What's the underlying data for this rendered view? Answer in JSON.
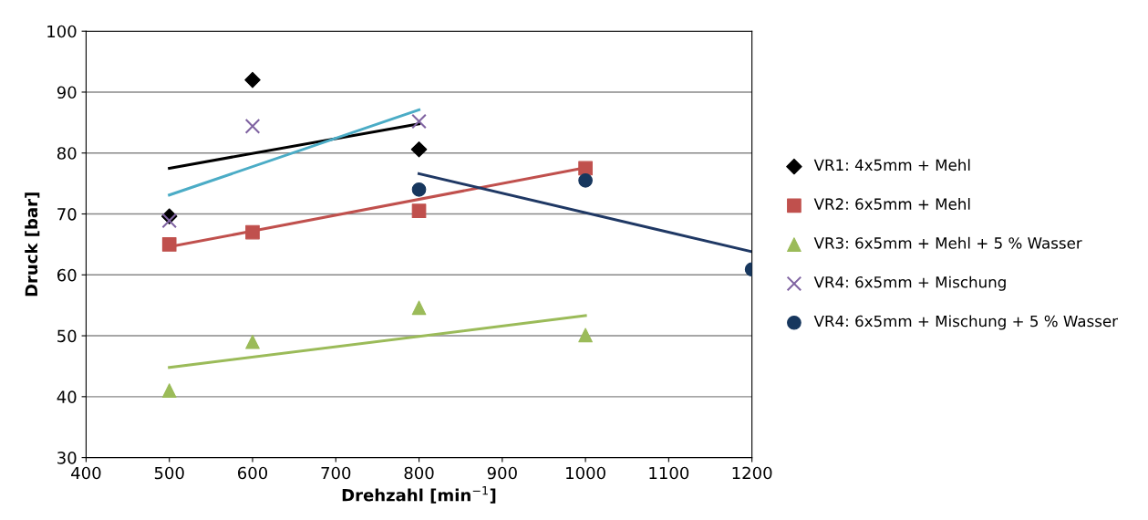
{
  "chart_data": {
    "type": "scatter",
    "xlabel": "Drehzahl [min$^{−1}$]",
    "ylabel": "Druck [bar]",
    "xlim": [
      400,
      1200
    ],
    "xticks": [
      400,
      500,
      600,
      700,
      800,
      900,
      1000,
      1100,
      1200
    ],
    "ylim": [
      30,
      100
    ],
    "yticks": [
      30,
      40,
      50,
      60,
      70,
      80,
      90,
      100
    ],
    "grid": "y",
    "legend": "right",
    "series": [
      {
        "name": "VR1: 4x5mm + Mehl",
        "color": "#000000",
        "marker": "diamond",
        "x": [
          500,
          600,
          800
        ],
        "values": [
          69.6,
          92,
          80.6
        ]
      },
      {
        "name": "VR2: 6x5mm + Mehl",
        "color": "#c0504d",
        "marker": "square",
        "x": [
          500,
          600,
          800,
          1000
        ],
        "values": [
          65,
          67,
          70.5,
          77.5
        ]
      },
      {
        "name": "VR3: 6x5mm + Mehl + 5 % Wasser",
        "color": "#9bbb59",
        "marker": "triangle",
        "x": [
          500,
          600,
          800,
          1000
        ],
        "values": [
          41,
          49,
          54.6,
          50.1
        ]
      },
      {
        "name": "VR4: 6x5mm + Mischung",
        "color": "#8064a2",
        "marker": "cross",
        "x": [
          500,
          600,
          800
        ],
        "values": [
          68.9,
          84.4,
          85.2
        ]
      },
      {
        "name": "VR4: 6x5mm + Mischung + 5 % Wasser",
        "color": "#17375e",
        "marker": "circle",
        "x": [
          800,
          1000,
          1200
        ],
        "values": [
          74,
          75.5,
          60.9
        ]
      },
      {
        "type": "line",
        "color": "#000000",
        "x": [
          500,
          800
        ],
        "values": [
          77.5,
          84.8
        ]
      },
      {
        "type": "line",
        "color": "#c0504d",
        "x": [
          500,
          1000
        ],
        "values": [
          64.6,
          77.6
        ]
      },
      {
        "type": "line",
        "color": "#9bbb59",
        "x": [
          500,
          1000
        ],
        "values": [
          44.8,
          53.3
        ]
      },
      {
        "type": "line",
        "color": "#4bacc6",
        "x": [
          500,
          800
        ],
        "values": [
          73.1,
          87.1
        ]
      },
      {
        "type": "line",
        "color": "#1f3864",
        "x": [
          800,
          1200
        ],
        "values": [
          76.6,
          63.8
        ]
      }
    ]
  }
}
